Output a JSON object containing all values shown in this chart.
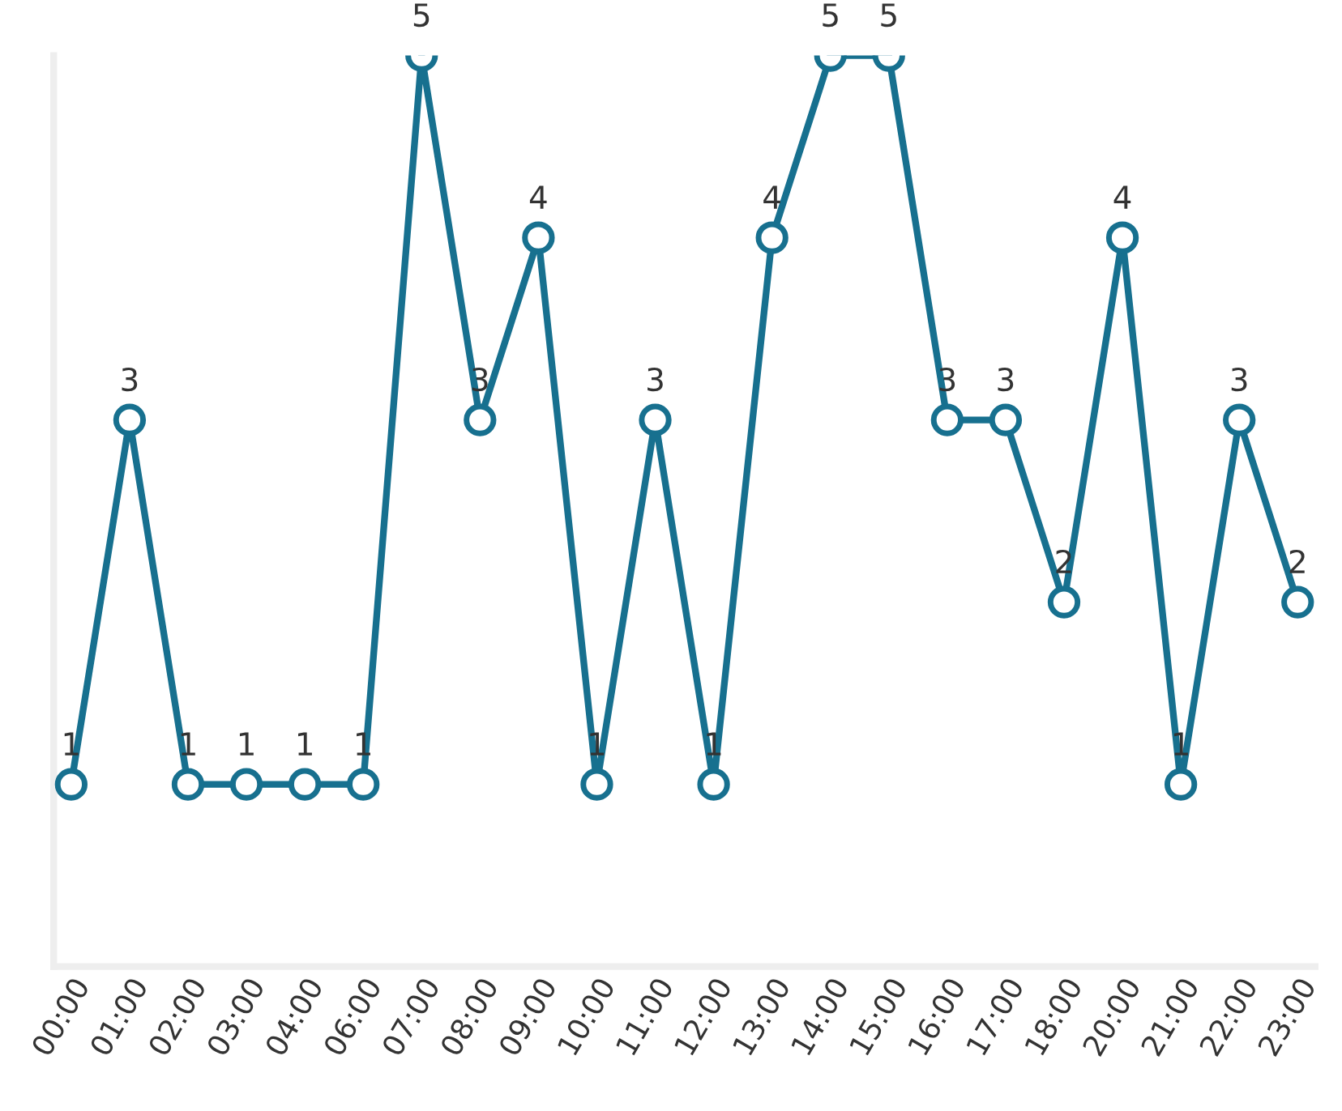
{
  "chart_data": {
    "type": "line",
    "categories": [
      "00:00",
      "01:00",
      "02:00",
      "03:00",
      "04:00",
      "06:00",
      "07:00",
      "08:00",
      "09:00",
      "10:00",
      "11:00",
      "12:00",
      "13:00",
      "14:00",
      "15:00",
      "16:00",
      "17:00",
      "18:00",
      "20:00",
      "21:00",
      "22:00",
      "23:00"
    ],
    "values": [
      1,
      3,
      1,
      1,
      1,
      1,
      5,
      3,
      4,
      1,
      3,
      1,
      4,
      5,
      5,
      3,
      3,
      2,
      4,
      1,
      3,
      2
    ],
    "color": "#17708f",
    "ylim": [
      0,
      5
    ],
    "data_labels": true,
    "marker": "circle",
    "line_style": "solid",
    "grid": false,
    "legend": false,
    "tick_labels": "x"
  }
}
